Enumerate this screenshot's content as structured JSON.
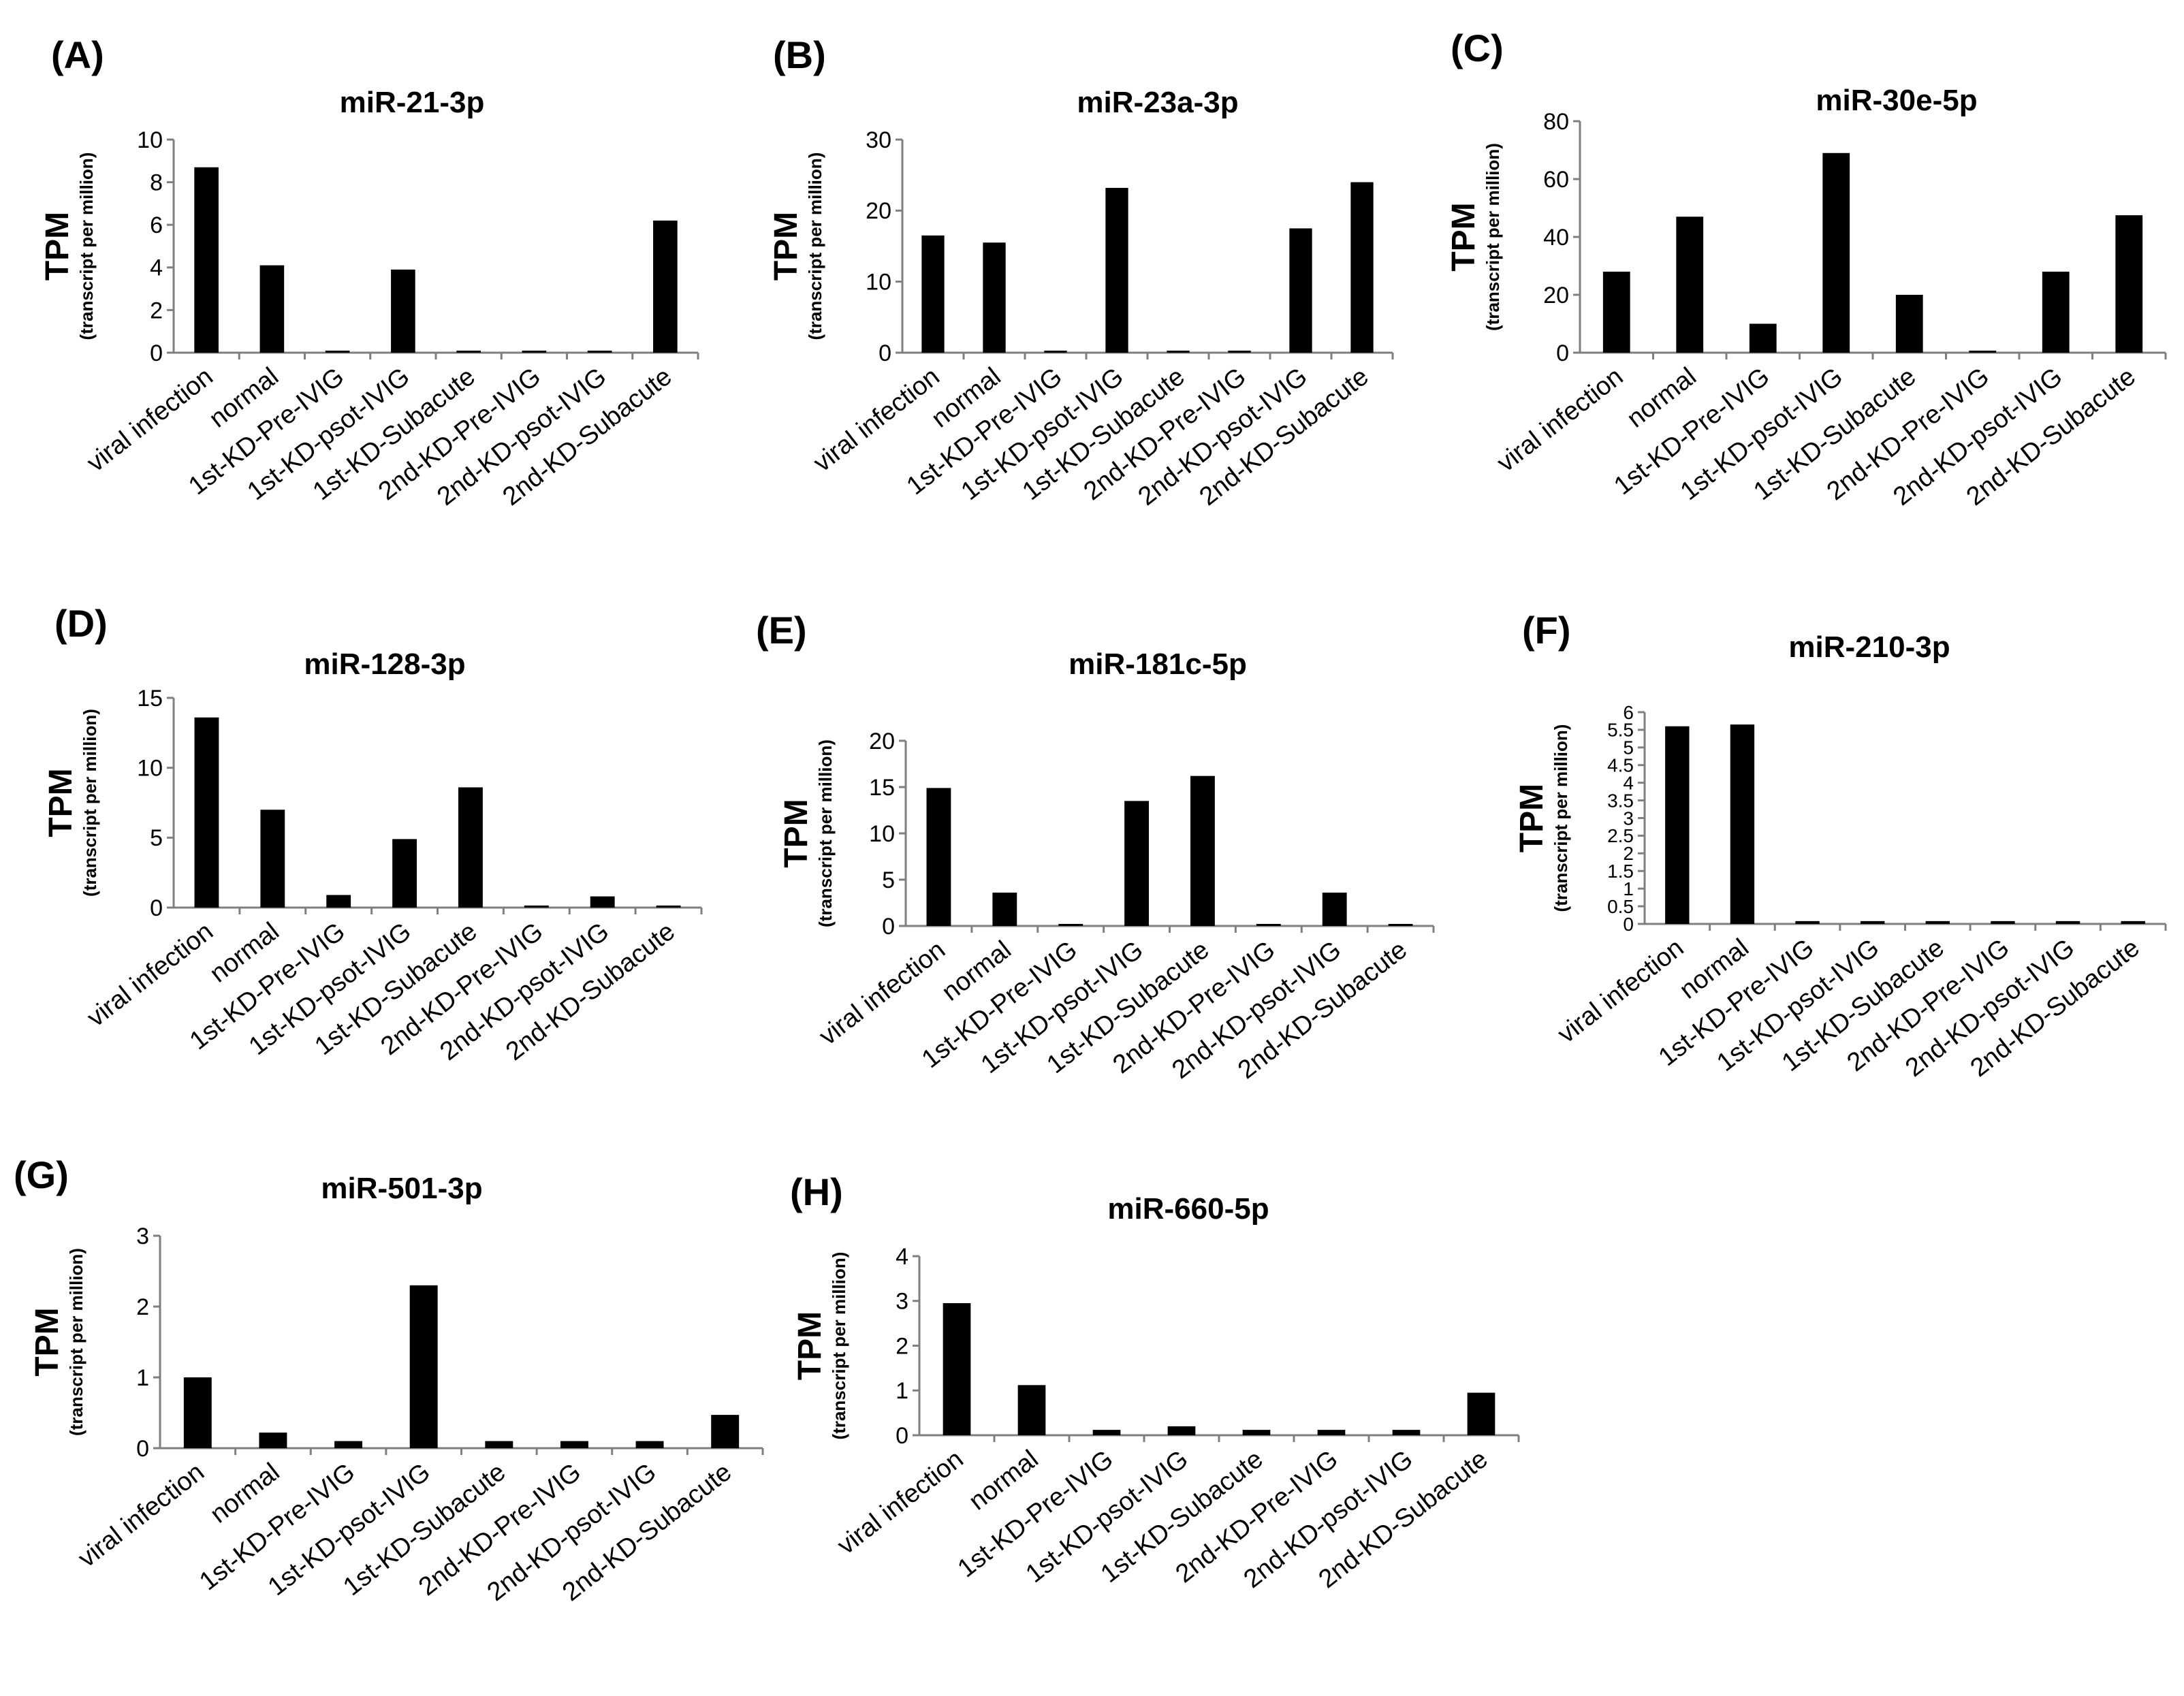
{
  "chart_data": [
    {
      "id": "A",
      "panel_label": "(A)",
      "type": "bar",
      "title": "miR-21-3p",
      "ylabel": "TPM",
      "ylabel_sub": "(transcript per million)",
      "xlabel": "",
      "ylim": [
        0,
        10
      ],
      "yticks": [
        "0",
        "2",
        "4",
        "6",
        "8",
        "10"
      ],
      "categories": [
        "viral infection",
        "normal",
        "1st-KD-Pre-IVIG",
        "1st-KD-psot-IVIG",
        "1st-KD-Subacute",
        "2nd-KD-Pre-IVIG",
        "2nd-KD-psot-IVIG",
        "2nd-KD-Subacute"
      ],
      "values": [
        8.7,
        4.1,
        0.05,
        3.9,
        0.05,
        0.05,
        0.05,
        6.2
      ]
    },
    {
      "id": "B",
      "panel_label": "(B)",
      "type": "bar",
      "title": "miR-23a-3p",
      "ylabel": "TPM",
      "ylabel_sub": "(transcript per million)",
      "xlabel": "",
      "ylim": [
        0,
        30
      ],
      "yticks": [
        "0",
        "10",
        "20",
        "30"
      ],
      "categories": [
        "viral infection",
        "normal",
        "1st-KD-Pre-IVIG",
        "1st-KD-psot-IVIG",
        "1st-KD-Subacute",
        "2nd-KD-Pre-IVIG",
        "2nd-KD-psot-IVIG",
        "2nd-KD-Subacute"
      ],
      "values": [
        16.5,
        15.5,
        0,
        23.2,
        0,
        0,
        17.5,
        24.0
      ]
    },
    {
      "id": "C",
      "panel_label": "(C)",
      "type": "bar",
      "title": "miR-30e-5p",
      "ylabel": "TPM",
      "ylabel_sub": "(transcript per million)",
      "xlabel": "",
      "ylim": [
        0,
        80
      ],
      "yticks": [
        "0",
        "20",
        "40",
        "60",
        "80"
      ],
      "categories": [
        "viral infection",
        "normal",
        "1st-KD-Pre-IVIG",
        "1st-KD-psot-IVIG",
        "1st-KD-Subacute",
        "2nd-KD-Pre-IVIG",
        "2nd-KD-psot-IVIG",
        "2nd-KD-Subacute"
      ],
      "values": [
        28,
        47,
        10,
        69,
        20,
        0.5,
        28,
        47.5
      ]
    },
    {
      "id": "D",
      "panel_label": "(D)",
      "type": "bar",
      "title": "miR-128-3p",
      "ylabel": "TPM",
      "ylabel_sub": "(transcript per million)",
      "xlabel": "",
      "ylim": [
        0,
        15
      ],
      "yticks": [
        "0",
        "5",
        "10",
        "15"
      ],
      "categories": [
        "viral infection",
        "normal",
        "1st-KD-Pre-IVIG",
        "1st-KD-psot-IVIG",
        "1st-KD-Subacute",
        "2nd-KD-Pre-IVIG",
        "2nd-KD-psot-IVIG",
        "2nd-KD-Subacute"
      ],
      "values": [
        13.6,
        7.0,
        0.9,
        4.9,
        8.6,
        0.1,
        0.8,
        0.1
      ]
    },
    {
      "id": "E",
      "panel_label": "(E)",
      "type": "bar",
      "title": "miR-181c-5p",
      "ylabel": "TPM",
      "ylabel_sub": "(transcript per million)",
      "xlabel": "",
      "ylim": [
        0,
        20
      ],
      "yticks": [
        "0",
        "5",
        "10",
        "15",
        "20"
      ],
      "categories": [
        "viral infection",
        "normal",
        "1st-KD-Pre-IVIG",
        "1st-KD-psot-IVIG",
        "1st-KD-Subacute",
        "2nd-KD-Pre-IVIG",
        "2nd-KD-psot-IVIG",
        "2nd-KD-Subacute"
      ],
      "values": [
        14.9,
        3.6,
        0.15,
        13.5,
        16.2,
        0.15,
        3.6,
        0.15
      ]
    },
    {
      "id": "F",
      "panel_label": "(F)",
      "type": "bar",
      "title": "miR-210-3p",
      "ylabel": "TPM",
      "ylabel_sub": "(transcript per million)",
      "xlabel": "",
      "ylim": [
        0,
        6
      ],
      "yticks": [
        "0",
        "0.5",
        "1",
        "1.5",
        "2",
        "2.5",
        "3",
        "3.5",
        "4",
        "4.5",
        "5",
        "5.5",
        "6"
      ],
      "categories": [
        "viral infection",
        "normal",
        "1st-KD-Pre-IVIG",
        "1st-KD-psot-IVIG",
        "1st-KD-Subacute",
        "2nd-KD-Pre-IVIG",
        "2nd-KD-psot-IVIG",
        "2nd-KD-Subacute"
      ],
      "values": [
        5.6,
        5.65,
        0.08,
        0.08,
        0.08,
        0.08,
        0.08,
        0.08
      ]
    },
    {
      "id": "G",
      "panel_label": "(G)",
      "type": "bar",
      "title": "miR-501-3p",
      "ylabel": "TPM",
      "ylabel_sub": "(transcript per million)",
      "xlabel": "",
      "ylim": [
        0,
        3
      ],
      "yticks": [
        "0",
        "1",
        "2",
        "3"
      ],
      "categories": [
        "viral infection",
        "normal",
        "1st-KD-Pre-IVIG",
        "1st-KD-psot-IVIG",
        "1st-KD-Subacute",
        "2nd-KD-Pre-IVIG",
        "2nd-KD-psot-IVIG",
        "2nd-KD-Subacute"
      ],
      "values": [
        1.0,
        0.22,
        0.1,
        2.3,
        0.1,
        0.1,
        0.1,
        0.47
      ]
    },
    {
      "id": "H",
      "panel_label": "(H)",
      "type": "bar",
      "title": "miR-660-5p",
      "ylabel": "TPM",
      "ylabel_sub": "(transcript per million)",
      "xlabel": "",
      "ylim": [
        0,
        4
      ],
      "yticks": [
        "0",
        "1",
        "2",
        "3",
        "4"
      ],
      "categories": [
        "viral infection",
        "normal",
        "1st-KD-Pre-IVIG",
        "1st-KD-psot-IVIG",
        "1st-KD-Subacute",
        "2nd-KD-Pre-IVIG",
        "2nd-KD-psot-IVIG",
        "2nd-KD-Subacute"
      ],
      "values": [
        2.95,
        1.12,
        0.12,
        0.2,
        0.12,
        0.12,
        0.12,
        0.95
      ]
    }
  ]
}
